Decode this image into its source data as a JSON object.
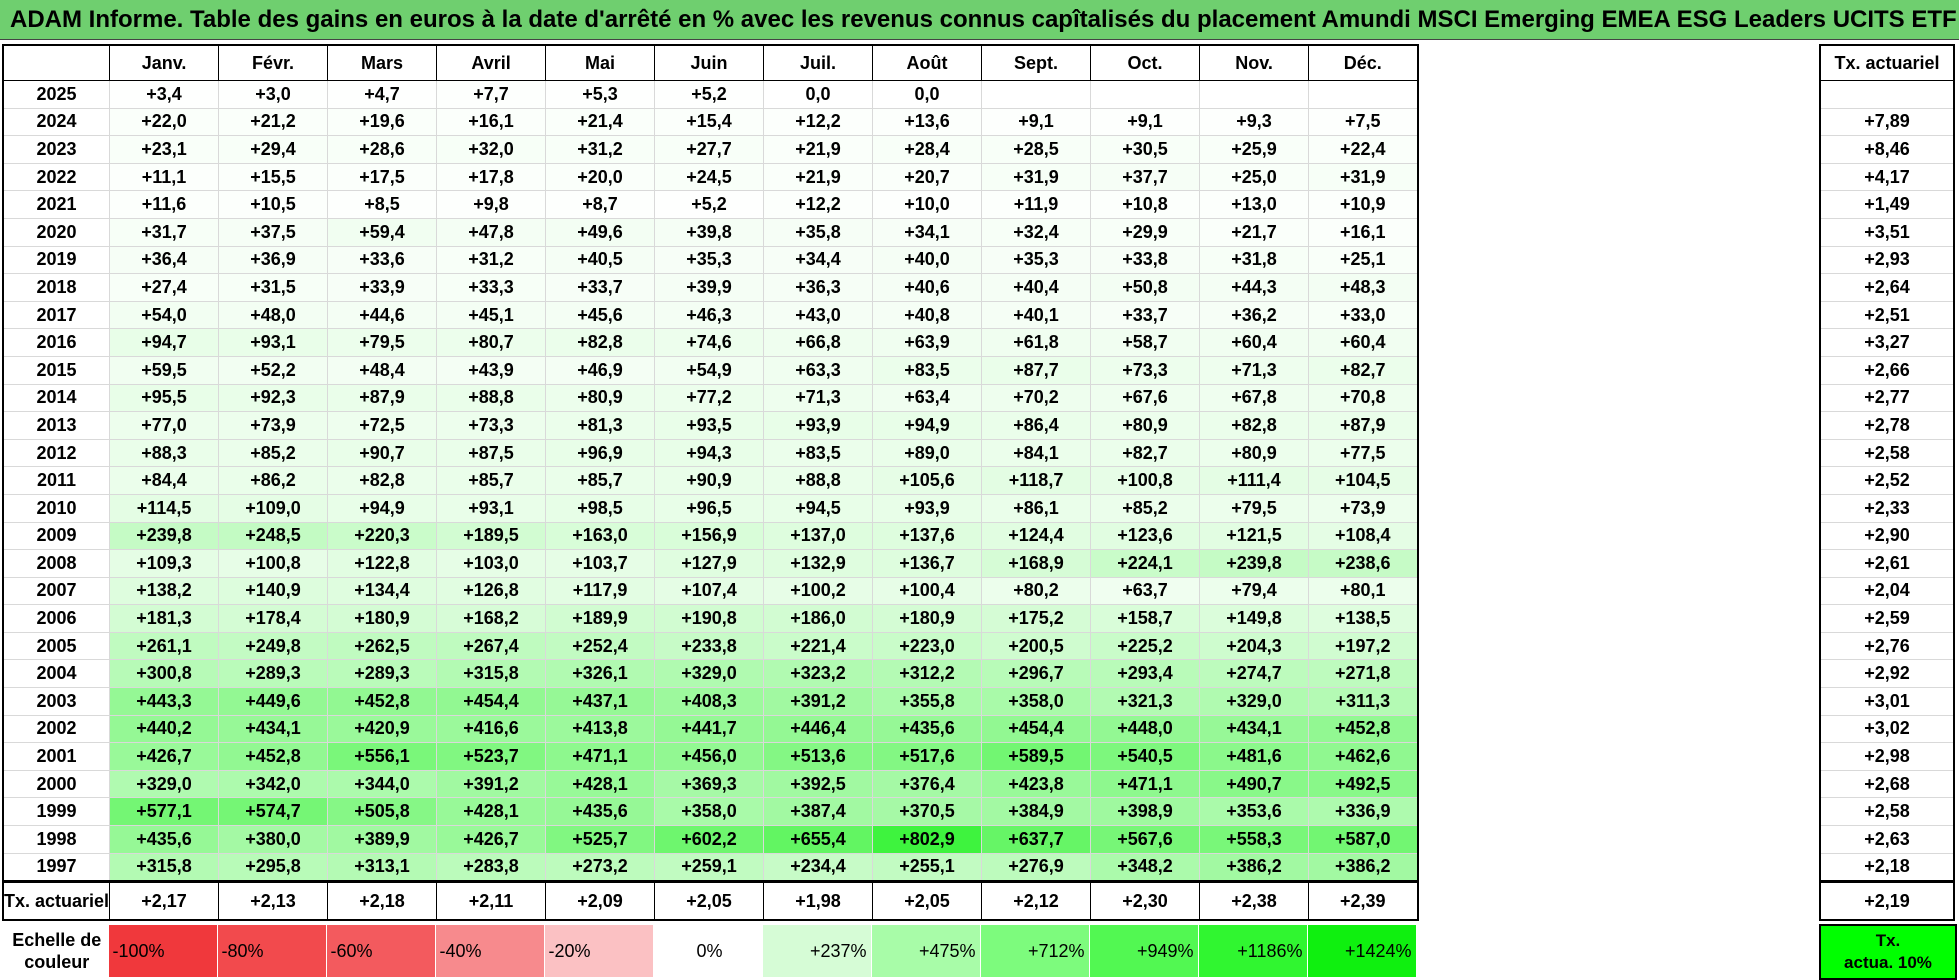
{
  "title": "ADAM Informe. Table des gains en euros à la date d'arrêté en % avec les revenus connus capîtalisés du placement Amundi MSCI Emerging EMEA ESG Leaders UCITS ETF PEA_Acc",
  "months": [
    "Janv.",
    "Févr.",
    "Mars",
    "Avril",
    "Mai",
    "Juin",
    "Juil.",
    "Août",
    "Sept.",
    "Oct.",
    "Nov.",
    "Déc."
  ],
  "rate_header": "Tx. actuariel",
  "rows": [
    {
      "year": "2025",
      "values": [
        "+3,4",
        "+3,0",
        "+4,7",
        "+7,7",
        "+5,3",
        "+5,2",
        "0,0",
        "0,0",
        "",
        "",
        "",
        ""
      ],
      "rate": ""
    },
    {
      "year": "2024",
      "values": [
        "+22,0",
        "+21,2",
        "+19,6",
        "+16,1",
        "+21,4",
        "+15,4",
        "+12,2",
        "+13,6",
        "+9,1",
        "+9,1",
        "+9,3",
        "+7,5"
      ],
      "rate": "+7,89"
    },
    {
      "year": "2023",
      "values": [
        "+23,1",
        "+29,4",
        "+28,6",
        "+32,0",
        "+31,2",
        "+27,7",
        "+21,9",
        "+28,4",
        "+28,5",
        "+30,5",
        "+25,9",
        "+22,4"
      ],
      "rate": "+8,46"
    },
    {
      "year": "2022",
      "values": [
        "+11,1",
        "+15,5",
        "+17,5",
        "+17,8",
        "+20,0",
        "+24,5",
        "+21,9",
        "+20,7",
        "+31,9",
        "+37,7",
        "+25,0",
        "+31,9"
      ],
      "rate": "+4,17"
    },
    {
      "year": "2021",
      "values": [
        "+11,6",
        "+10,5",
        "+8,5",
        "+9,8",
        "+8,7",
        "+5,2",
        "+12,2",
        "+10,0",
        "+11,9",
        "+10,8",
        "+13,0",
        "+10,9"
      ],
      "rate": "+1,49"
    },
    {
      "year": "2020",
      "values": [
        "+31,7",
        "+37,5",
        "+59,4",
        "+47,8",
        "+49,6",
        "+39,8",
        "+35,8",
        "+34,1",
        "+32,4",
        "+29,9",
        "+21,7",
        "+16,1"
      ],
      "rate": "+3,51"
    },
    {
      "year": "2019",
      "values": [
        "+36,4",
        "+36,9",
        "+33,6",
        "+31,2",
        "+40,5",
        "+35,3",
        "+34,4",
        "+40,0",
        "+35,3",
        "+33,8",
        "+31,8",
        "+25,1"
      ],
      "rate": "+2,93"
    },
    {
      "year": "2018",
      "values": [
        "+27,4",
        "+31,5",
        "+33,9",
        "+33,3",
        "+33,7",
        "+39,9",
        "+36,3",
        "+40,6",
        "+40,4",
        "+50,8",
        "+44,3",
        "+48,3"
      ],
      "rate": "+2,64"
    },
    {
      "year": "2017",
      "values": [
        "+54,0",
        "+48,0",
        "+44,6",
        "+45,1",
        "+45,6",
        "+46,3",
        "+43,0",
        "+40,8",
        "+40,1",
        "+33,7",
        "+36,2",
        "+33,0"
      ],
      "rate": "+2,51"
    },
    {
      "year": "2016",
      "values": [
        "+94,7",
        "+93,1",
        "+79,5",
        "+80,7",
        "+82,8",
        "+74,6",
        "+66,8",
        "+63,9",
        "+61,8",
        "+58,7",
        "+60,4",
        "+60,4"
      ],
      "rate": "+3,27"
    },
    {
      "year": "2015",
      "values": [
        "+59,5",
        "+52,2",
        "+48,4",
        "+43,9",
        "+46,9",
        "+54,9",
        "+63,3",
        "+83,5",
        "+87,7",
        "+73,3",
        "+71,3",
        "+82,7"
      ],
      "rate": "+2,66"
    },
    {
      "year": "2014",
      "values": [
        "+95,5",
        "+92,3",
        "+87,9",
        "+88,8",
        "+80,9",
        "+77,2",
        "+71,3",
        "+63,4",
        "+70,2",
        "+67,6",
        "+67,8",
        "+70,8"
      ],
      "rate": "+2,77"
    },
    {
      "year": "2013",
      "values": [
        "+77,0",
        "+73,9",
        "+72,5",
        "+73,3",
        "+81,3",
        "+93,5",
        "+93,9",
        "+94,9",
        "+86,4",
        "+80,9",
        "+82,8",
        "+87,9"
      ],
      "rate": "+2,78"
    },
    {
      "year": "2012",
      "values": [
        "+88,3",
        "+85,2",
        "+90,7",
        "+87,5",
        "+96,9",
        "+94,3",
        "+83,5",
        "+89,0",
        "+84,1",
        "+82,7",
        "+80,9",
        "+77,5"
      ],
      "rate": "+2,58"
    },
    {
      "year": "2011",
      "values": [
        "+84,4",
        "+86,2",
        "+82,8",
        "+85,7",
        "+85,7",
        "+90,9",
        "+88,8",
        "+105,6",
        "+118,7",
        "+100,8",
        "+111,4",
        "+104,5"
      ],
      "rate": "+2,52"
    },
    {
      "year": "2010",
      "values": [
        "+114,5",
        "+109,0",
        "+94,9",
        "+93,1",
        "+98,5",
        "+96,5",
        "+94,5",
        "+93,9",
        "+86,1",
        "+85,2",
        "+79,5",
        "+73,9"
      ],
      "rate": "+2,33"
    },
    {
      "year": "2009",
      "values": [
        "+239,8",
        "+248,5",
        "+220,3",
        "+189,5",
        "+163,0",
        "+156,9",
        "+137,0",
        "+137,6",
        "+124,4",
        "+123,6",
        "+121,5",
        "+108,4"
      ],
      "rate": "+2,90"
    },
    {
      "year": "2008",
      "values": [
        "+109,3",
        "+100,8",
        "+122,8",
        "+103,0",
        "+103,7",
        "+127,9",
        "+132,9",
        "+136,7",
        "+168,9",
        "+224,1",
        "+239,8",
        "+238,6"
      ],
      "rate": "+2,61"
    },
    {
      "year": "2007",
      "values": [
        "+138,2",
        "+140,9",
        "+134,4",
        "+126,8",
        "+117,9",
        "+107,4",
        "+100,2",
        "+100,4",
        "+80,2",
        "+63,7",
        "+79,4",
        "+80,1"
      ],
      "rate": "+2,04"
    },
    {
      "year": "2006",
      "values": [
        "+181,3",
        "+178,4",
        "+180,9",
        "+168,2",
        "+189,9",
        "+190,8",
        "+186,0",
        "+180,9",
        "+175,2",
        "+158,7",
        "+149,8",
        "+138,5"
      ],
      "rate": "+2,59"
    },
    {
      "year": "2005",
      "values": [
        "+261,1",
        "+249,8",
        "+262,5",
        "+267,4",
        "+252,4",
        "+233,8",
        "+221,4",
        "+223,0",
        "+200,5",
        "+225,2",
        "+204,3",
        "+197,2"
      ],
      "rate": "+2,76"
    },
    {
      "year": "2004",
      "values": [
        "+300,8",
        "+289,3",
        "+289,3",
        "+315,8",
        "+326,1",
        "+329,0",
        "+323,2",
        "+312,2",
        "+296,7",
        "+293,4",
        "+274,7",
        "+271,8"
      ],
      "rate": "+2,92"
    },
    {
      "year": "2003",
      "values": [
        "+443,3",
        "+449,6",
        "+452,8",
        "+454,4",
        "+437,1",
        "+408,3",
        "+391,2",
        "+355,8",
        "+358,0",
        "+321,3",
        "+329,0",
        "+311,3"
      ],
      "rate": "+3,01"
    },
    {
      "year": "2002",
      "values": [
        "+440,2",
        "+434,1",
        "+420,9",
        "+416,6",
        "+413,8",
        "+441,7",
        "+446,4",
        "+435,6",
        "+454,4",
        "+448,0",
        "+434,1",
        "+452,8"
      ],
      "rate": "+3,02"
    },
    {
      "year": "2001",
      "values": [
        "+426,7",
        "+452,8",
        "+556,1",
        "+523,7",
        "+471,1",
        "+456,0",
        "+513,6",
        "+517,6",
        "+589,5",
        "+540,5",
        "+481,6",
        "+462,6"
      ],
      "rate": "+2,98"
    },
    {
      "year": "2000",
      "values": [
        "+329,0",
        "+342,0",
        "+344,0",
        "+391,2",
        "+428,1",
        "+369,3",
        "+392,5",
        "+376,4",
        "+423,8",
        "+471,1",
        "+490,7",
        "+492,5"
      ],
      "rate": "+2,68"
    },
    {
      "year": "1999",
      "values": [
        "+577,1",
        "+574,7",
        "+505,8",
        "+428,1",
        "+435,6",
        "+358,0",
        "+387,4",
        "+370,5",
        "+384,9",
        "+398,9",
        "+353,6",
        "+336,9"
      ],
      "rate": "+2,58"
    },
    {
      "year": "1998",
      "values": [
        "+435,6",
        "+380,0",
        "+389,9",
        "+426,7",
        "+525,7",
        "+602,2",
        "+655,4",
        "+802,9",
        "+637,7",
        "+567,6",
        "+558,3",
        "+587,0"
      ],
      "rate": "+2,63"
    },
    {
      "year": "1997",
      "values": [
        "+315,8",
        "+295,8",
        "+313,1",
        "+283,8",
        "+273,2",
        "+259,1",
        "+234,4",
        "+255,1",
        "+276,9",
        "+348,2",
        "+386,2",
        "+386,2"
      ],
      "rate": "+2,18"
    }
  ],
  "bottom_row": {
    "label": "Tx. actuariel",
    "values": [
      "+2,17",
      "+2,13",
      "+2,18",
      "+2,11",
      "+2,09",
      "+2,05",
      "+1,98",
      "+2,05",
      "+2,12",
      "+2,30",
      "+2,38",
      "+2,39"
    ],
    "rate": "+2,19"
  },
  "scale": {
    "label_line1": "Echelle de",
    "label_line2": "couleur",
    "steps": [
      {
        "text": "-100%",
        "color": "#f0383c"
      },
      {
        "text": "-80%",
        "color": "#f24a4d"
      },
      {
        "text": "-60%",
        "color": "#f35a5e"
      },
      {
        "text": "-40%",
        "color": "#f78a8d"
      },
      {
        "text": "-20%",
        "color": "#fbc1c3"
      },
      {
        "text": "0%",
        "color": "#ffffff"
      },
      {
        "text": "+237%",
        "color": "#d6fcd6"
      },
      {
        "text": "+475%",
        "color": "#a8fca8"
      },
      {
        "text": "+712%",
        "color": "#7dfb7d"
      },
      {
        "text": "+949%",
        "color": "#52f852"
      },
      {
        "text": "+1186%",
        "color": "#30f630"
      },
      {
        "text": "+1424%",
        "color": "#0ff00f"
      }
    ],
    "rate_line1": "Tx.",
    "rate_line2": "actua. 10%"
  }
}
